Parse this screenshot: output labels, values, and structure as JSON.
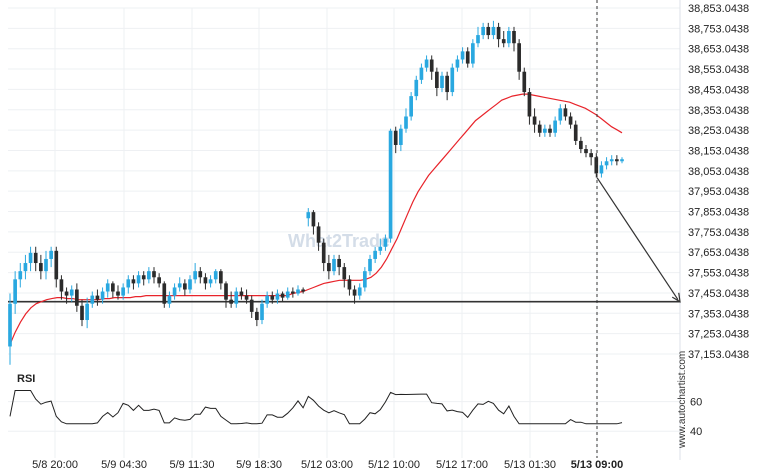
{
  "chart_data": {
    "type": "candlestick",
    "price_axis": {
      "ticks": [
        "38,853.0438",
        "38,753.0438",
        "38,653.0438",
        "38,553.0438",
        "38,453.0438",
        "38,353.0438",
        "38,253.0438",
        "38,153.0438",
        "38,053.0438",
        "37,953.0438",
        "37,853.0438",
        "37,753.0438",
        "37,653.0438",
        "37,553.0438",
        "37,453.0438",
        "37,353.0438",
        "37,253.0438",
        "37,153.0438"
      ],
      "range": [
        37153.0438,
        38853.0438
      ]
    },
    "time_axis": {
      "ticks": [
        "5/8 20:00",
        "5/9 04:30",
        "5/9 11:30",
        "5/9 18:30",
        "5/12 03:00",
        "5/12 10:00",
        "5/12 17:00",
        "5/13 01:30",
        "5/13 09:00"
      ],
      "highlighted": "5/13 09:00"
    },
    "candles": [
      [
        37190,
        37400,
        37100,
        37450
      ],
      [
        37400,
        37520,
        37350,
        37560
      ],
      [
        37520,
        37560,
        37480,
        37600
      ],
      [
        37560,
        37600,
        37520,
        37640
      ],
      [
        37600,
        37650,
        37560,
        37680
      ],
      [
        37650,
        37600,
        37560,
        37680
      ],
      [
        37600,
        37560,
        37520,
        37640
      ],
      [
        37560,
        37620,
        37520,
        37660
      ],
      [
        37620,
        37660,
        37580,
        37680
      ],
      [
        37660,
        37520,
        37480,
        37680
      ],
      [
        37520,
        37460,
        37420,
        37540
      ],
      [
        37460,
        37440,
        37400,
        37480
      ],
      [
        37440,
        37470,
        37410,
        37490
      ],
      [
        37470,
        37390,
        37360,
        37500
      ],
      [
        37390,
        37320,
        37290,
        37420
      ],
      [
        37320,
        37400,
        37280,
        37430
      ],
      [
        37400,
        37440,
        37380,
        37460
      ],
      [
        37440,
        37420,
        37390,
        37470
      ],
      [
        37420,
        37460,
        37400,
        37480
      ],
      [
        37460,
        37500,
        37430,
        37520
      ],
      [
        37500,
        37460,
        37430,
        37510
      ],
      [
        37460,
        37440,
        37420,
        37490
      ],
      [
        37440,
        37480,
        37420,
        37500
      ],
      [
        37480,
        37520,
        37450,
        37540
      ],
      [
        37520,
        37500,
        37470,
        37540
      ],
      [
        37500,
        37540,
        37480,
        37560
      ],
      [
        37540,
        37520,
        37490,
        37560
      ],
      [
        37520,
        37560,
        37500,
        37580
      ],
      [
        37560,
        37530,
        37500,
        37580
      ],
      [
        37530,
        37500,
        37480,
        37550
      ],
      [
        37500,
        37400,
        37380,
        37510
      ],
      [
        37400,
        37440,
        37380,
        37460
      ],
      [
        37440,
        37480,
        37420,
        37500
      ],
      [
        37480,
        37500,
        37460,
        37530
      ],
      [
        37500,
        37470,
        37440,
        37520
      ],
      [
        37470,
        37520,
        37450,
        37540
      ],
      [
        37520,
        37560,
        37500,
        37600
      ],
      [
        37560,
        37530,
        37500,
        37580
      ],
      [
        37530,
        37500,
        37470,
        37550
      ],
      [
        37500,
        37520,
        37480,
        37540
      ],
      [
        37520,
        37560,
        37500,
        37570
      ],
      [
        37560,
        37500,
        37470,
        37570
      ],
      [
        37500,
        37420,
        37380,
        37510
      ],
      [
        37420,
        37400,
        37380,
        37460
      ],
      [
        37400,
        37460,
        37380,
        37480
      ],
      [
        37460,
        37440,
        37420,
        37480
      ],
      [
        37440,
        37420,
        37400,
        37470
      ],
      [
        37420,
        37360,
        37330,
        37440
      ],
      [
        37360,
        37320,
        37290,
        37380
      ],
      [
        37320,
        37400,
        37300,
        37420
      ],
      [
        37400,
        37440,
        37380,
        37460
      ],
      [
        37440,
        37420,
        37400,
        37460
      ],
      [
        37420,
        37450,
        37400,
        37470
      ],
      [
        37450,
        37430,
        37410,
        37460
      ],
      [
        37430,
        37460,
        37420,
        37480
      ],
      [
        37460,
        37450,
        37430,
        37480
      ],
      [
        37450,
        37470,
        37440,
        37490
      ],
      [
        37470,
        37460,
        37450,
        37480
      ],
      [
        37820,
        37850,
        37780,
        37870
      ],
      [
        37850,
        37780,
        37740,
        37860
      ],
      [
        37780,
        37700,
        37660,
        37800
      ],
      [
        37700,
        37600,
        37560,
        37720
      ],
      [
        37600,
        37560,
        37520,
        37640
      ],
      [
        37560,
        37620,
        37540,
        37640
      ],
      [
        37620,
        37580,
        37540,
        37640
      ],
      [
        37580,
        37520,
        37480,
        37600
      ],
      [
        37520,
        37470,
        37440,
        37540
      ],
      [
        37470,
        37440,
        37400,
        37490
      ],
      [
        37440,
        37480,
        37420,
        37500
      ],
      [
        37480,
        37560,
        37460,
        37580
      ],
      [
        37560,
        37620,
        37540,
        37640
      ],
      [
        37620,
        37660,
        37600,
        37680
      ],
      [
        37660,
        37680,
        37640,
        37720
      ],
      [
        37680,
        37720,
        37660,
        37740
      ],
      [
        37720,
        38250,
        37700,
        38260
      ],
      [
        38250,
        38180,
        38140,
        38270
      ],
      [
        38180,
        38260,
        38150,
        38280
      ],
      [
        38260,
        38320,
        38240,
        38360
      ],
      [
        38320,
        38420,
        38300,
        38440
      ],
      [
        38420,
        38500,
        38400,
        38520
      ],
      [
        38500,
        38560,
        38480,
        38580
      ],
      [
        38560,
        38600,
        38540,
        38620
      ],
      [
        38600,
        38540,
        38500,
        38620
      ],
      [
        38540,
        38460,
        38420,
        38560
      ],
      [
        38460,
        38520,
        38440,
        38540
      ],
      [
        38520,
        38440,
        38400,
        38540
      ],
      [
        38440,
        38560,
        38420,
        38580
      ],
      [
        38560,
        38600,
        38540,
        38620
      ],
      [
        38600,
        38640,
        38580,
        38660
      ],
      [
        38640,
        38580,
        38560,
        38660
      ],
      [
        38580,
        38680,
        38560,
        38700
      ],
      [
        38680,
        38720,
        38660,
        38760
      ],
      [
        38720,
        38760,
        38700,
        38780
      ],
      [
        38760,
        38720,
        38700,
        38780
      ],
      [
        38720,
        38760,
        38700,
        38790
      ],
      [
        38760,
        38700,
        38660,
        38780
      ],
      [
        38700,
        38680,
        38660,
        38740
      ],
      [
        38680,
        38740,
        38660,
        38760
      ],
      [
        38740,
        38680,
        38640,
        38760
      ],
      [
        38680,
        38540,
        38500,
        38700
      ],
      [
        38540,
        38440,
        38420,
        38560
      ],
      [
        38440,
        38320,
        38280,
        38460
      ],
      [
        38320,
        38280,
        38240,
        38360
      ],
      [
        38280,
        38240,
        38220,
        38300
      ],
      [
        38240,
        38260,
        38220,
        38280
      ],
      [
        38260,
        38240,
        38220,
        38280
      ],
      [
        38240,
        38300,
        38220,
        38320
      ],
      [
        38300,
        38360,
        38280,
        38380
      ],
      [
        38360,
        38320,
        38300,
        38380
      ],
      [
        38320,
        38280,
        38260,
        38340
      ],
      [
        38280,
        38200,
        38180,
        38300
      ],
      [
        38200,
        38160,
        38140,
        38220
      ],
      [
        38160,
        38140,
        38120,
        38180
      ],
      [
        38140,
        38120,
        38080,
        38160
      ],
      [
        38120,
        38040,
        38020,
        38140
      ],
      [
        38040,
        38080,
        38020,
        38100
      ],
      [
        38080,
        38100,
        38060,
        38120
      ],
      [
        38100,
        38110,
        38080,
        38130
      ],
      [
        38110,
        38100,
        38080,
        38130
      ],
      [
        38100,
        38110,
        38090,
        38120
      ]
    ],
    "moving_average": [
      37200,
      37260,
      37310,
      37350,
      37380,
      37400,
      37410,
      37420,
      37425,
      37430,
      37430,
      37425,
      37425,
      37420,
      37420,
      37420,
      37420,
      37420,
      37425,
      37425,
      37430,
      37430,
      37430,
      37430,
      37435,
      37435,
      37440,
      37440,
      37440,
      37440,
      37440,
      37440,
      37440,
      37440,
      37440,
      37440,
      37440,
      37440,
      37440,
      37440,
      37440,
      37440,
      37440,
      37440,
      37440,
      37440,
      37440,
      37440,
      37440,
      37440,
      37440,
      37440,
      37440,
      37440,
      37450,
      37455,
      37460,
      37470,
      37480,
      37490,
      37500,
      37505,
      37510,
      37515,
      37515,
      37515,
      37515,
      37515,
      37520,
      37530,
      37550,
      37580,
      37620,
      37670,
      37720,
      37780,
      37840,
      37900,
      37950,
      37990,
      38030,
      38060,
      38090,
      38120,
      38150,
      38180,
      38210,
      38240,
      38270,
      38300,
      38320,
      38340,
      38360,
      38380,
      38400,
      38410,
      38420,
      38425,
      38430,
      38430,
      38425,
      38420,
      38415,
      38410,
      38405,
      38400,
      38395,
      38390,
      38380,
      38370,
      38360,
      38345,
      38330,
      38310,
      38290,
      38270,
      38255,
      38240
    ],
    "horizontal_level": 37410,
    "projection": {
      "from_price": 38020,
      "to_price": 37410
    },
    "rsi": {
      "label": "RSI",
      "ticks": [
        60,
        40
      ],
      "range": [
        30,
        80
      ]
    },
    "watermark": "What2Trade",
    "credit": "www.autochartist.com"
  }
}
